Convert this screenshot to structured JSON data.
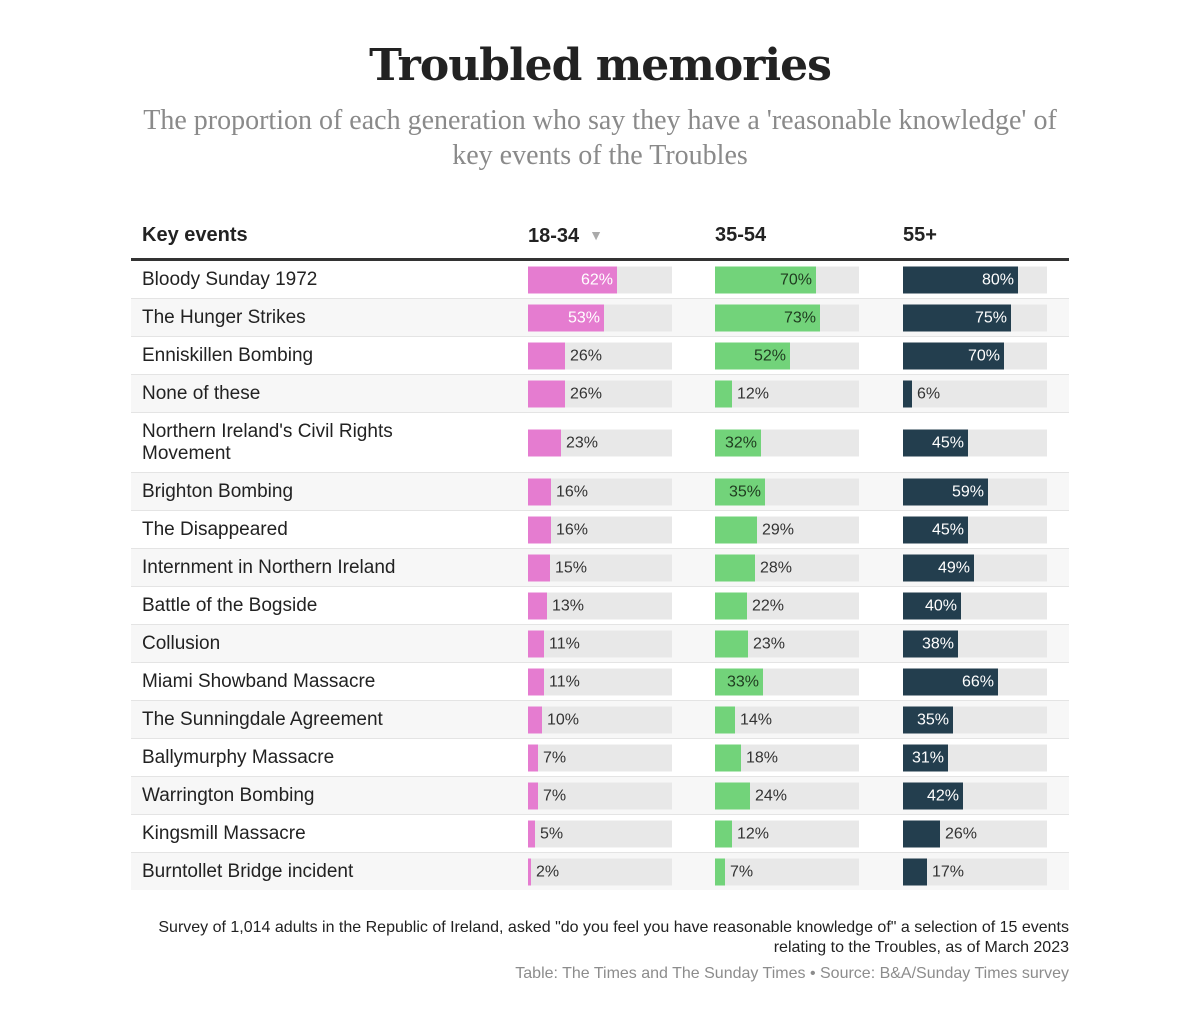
{
  "chart_data": {
    "type": "table",
    "title": "Troubled memories",
    "subtitle": "The proportion of each generation who say they have a 'reasonable knowledge' of key events of the Troubles",
    "event_header": "Key events",
    "columns": [
      "18-34",
      "35-54",
      "55+"
    ],
    "sorted_column": "18-34",
    "value_unit": "%",
    "ylim": [
      0,
      100
    ],
    "colors": {
      "18-34": "#e57cd0",
      "35-54": "#72d37a",
      "55+": "#233e4e",
      "track": "#e8e8e8"
    },
    "rows": [
      {
        "event": "Bloody Sunday 1972",
        "values": [
          62,
          70,
          80
        ]
      },
      {
        "event": "The Hunger Strikes",
        "values": [
          53,
          73,
          75
        ]
      },
      {
        "event": "Enniskillen Bombing",
        "values": [
          26,
          52,
          70
        ]
      },
      {
        "event": "None of these",
        "values": [
          26,
          12,
          6
        ]
      },
      {
        "event": "Northern Ireland's Civil Rights Movement",
        "values": [
          23,
          32,
          45
        ]
      },
      {
        "event": "Brighton Bombing",
        "values": [
          16,
          35,
          59
        ]
      },
      {
        "event": "The Disappeared",
        "values": [
          16,
          29,
          45
        ]
      },
      {
        "event": "Internment in Northern Ireland",
        "values": [
          15,
          28,
          49
        ]
      },
      {
        "event": "Battle of the Bogside",
        "values": [
          13,
          22,
          40
        ]
      },
      {
        "event": "Collusion",
        "values": [
          11,
          23,
          38
        ]
      },
      {
        "event": "Miami Showband Massacre",
        "values": [
          11,
          33,
          66
        ]
      },
      {
        "event": "The Sunningdale Agreement",
        "values": [
          10,
          14,
          35
        ]
      },
      {
        "event": "Ballymurphy Massacre",
        "values": [
          7,
          18,
          31
        ]
      },
      {
        "event": "Warrington Bombing",
        "values": [
          7,
          24,
          42
        ]
      },
      {
        "event": "Kingsmill Massacre",
        "values": [
          5,
          12,
          26
        ]
      },
      {
        "event": "Burntollet Bridge incident",
        "values": [
          2,
          7,
          17
        ]
      }
    ],
    "note": "Survey of 1,014 adults in the Republic of Ireland, asked \"do you feel you have reasonable knowledge of\" a selection of 15 events relating to the Troubles, as of March 2023",
    "source": "Table: The Times and The Sunday Times • Source: B&A/Sunday Times survey"
  },
  "icons": {
    "sort": "sort-descending-icon"
  }
}
